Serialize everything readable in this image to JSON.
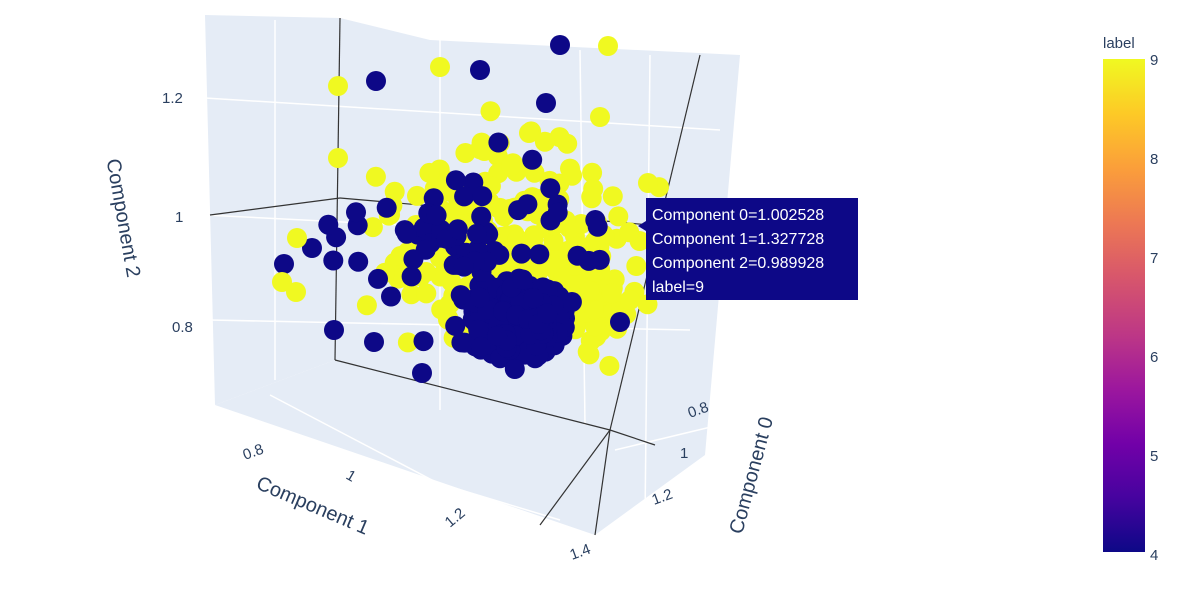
{
  "chart_data": {
    "type": "scatter3d",
    "axes": {
      "x": {
        "title": "Component 0",
        "ticks": [
          "0.8",
          "1",
          "1.2",
          "1.4"
        ]
      },
      "y": {
        "title": "Component 1",
        "ticks": [
          "0.8",
          "1",
          "1.2"
        ]
      },
      "z": {
        "title": "Component 2",
        "ticks": [
          "0.8",
          "1",
          "1.2"
        ]
      }
    },
    "color_attribute": "label",
    "colorbar": {
      "title": "label",
      "ticks": [
        "4",
        "5",
        "6",
        "7",
        "8",
        "9"
      ],
      "range": [
        4,
        9
      ],
      "colors": [
        "#0d0887",
        "#46039f",
        "#7201a8",
        "#9c179e",
        "#bd3786",
        "#d8576b",
        "#ed7953",
        "#fb9f3a",
        "#fdca26",
        "#f0f921"
      ]
    },
    "groups": [
      {
        "label": 9,
        "color": "#f0f921"
      },
      {
        "label": 4,
        "color": "#0d0887"
      }
    ],
    "hover": {
      "lines": [
        "Component 0=1.002528",
        "Component 1=1.327728",
        "Component 2=0.989928",
        "label=9"
      ]
    }
  }
}
